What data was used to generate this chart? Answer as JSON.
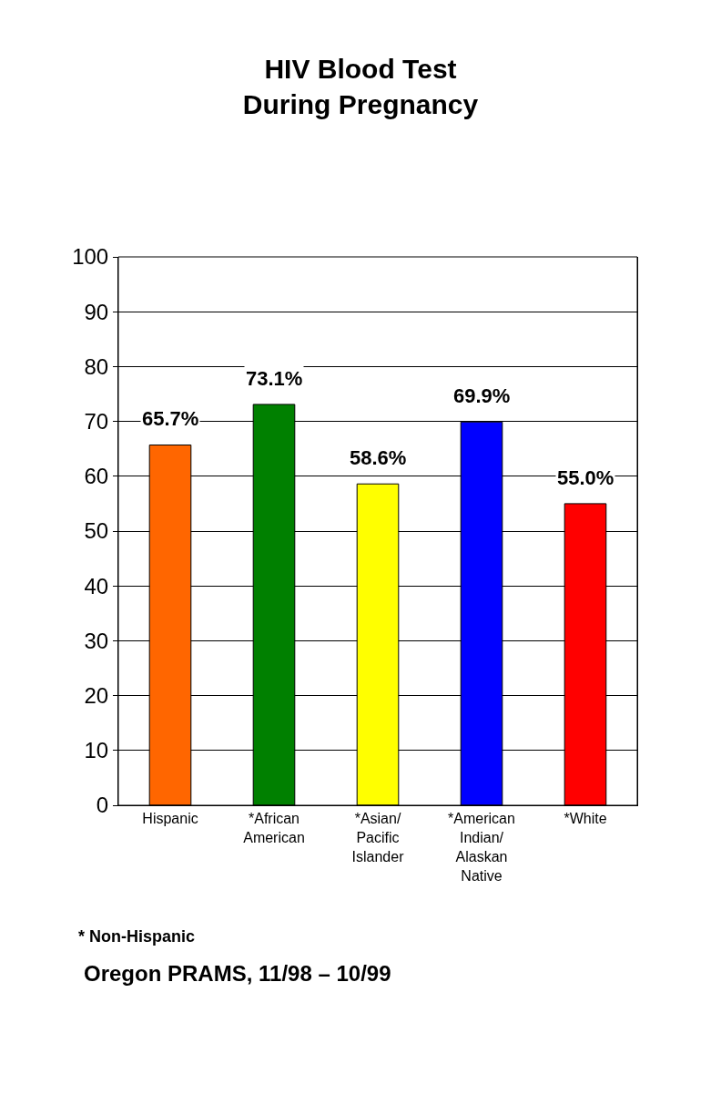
{
  "chart_data": {
    "type": "bar",
    "title": "HIV Blood Test\nDuring Pregnancy",
    "categories": [
      "Hispanic",
      "*African\nAmerican",
      "*Asian/\nPacific\nIslander",
      "*American\nIndian/\nAlaskan\nNative",
      "*White"
    ],
    "values": [
      65.7,
      73.1,
      58.6,
      69.9,
      55.0
    ],
    "colors": [
      "#ff6600",
      "#008000",
      "#ffff00",
      "#0000ff",
      "#ff0000"
    ],
    "value_labels": [
      "65.7%",
      "73.1%",
      "58.6%",
      "69.9%",
      "55.0%"
    ],
    "ylim": [
      0,
      100
    ],
    "yticks": [
      0,
      10,
      20,
      30,
      40,
      50,
      60,
      70,
      80,
      90,
      100
    ],
    "grid": "y",
    "annotations": [
      "* Non-Hispanic",
      "Oregon PRAMS, 11/98 – 10/99"
    ]
  }
}
